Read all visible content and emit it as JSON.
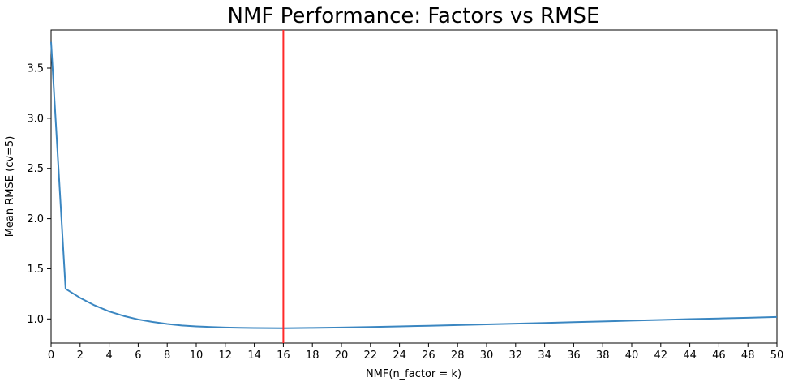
{
  "chart_data": {
    "type": "line",
    "title": "NMF Performance: Factors vs RMSE",
    "xlabel": "NMF(n_factor = k)",
    "ylabel": "Mean RMSE (cv=5)",
    "xlim": [
      0,
      50
    ],
    "ylim": [
      0.76,
      3.88
    ],
    "xticks": [
      0,
      2,
      4,
      6,
      8,
      10,
      12,
      14,
      16,
      18,
      20,
      22,
      24,
      26,
      28,
      30,
      32,
      34,
      36,
      38,
      40,
      42,
      44,
      46,
      48,
      50
    ],
    "yticks": [
      1.0,
      1.5,
      2.0,
      2.5,
      3.0,
      3.5
    ],
    "ytick_labels": [
      "1.0",
      "1.5",
      "2.0",
      "2.5",
      "3.0",
      "3.5"
    ],
    "grid": false,
    "legend": "none",
    "series": [
      {
        "color": "#3a86c1",
        "x": [
          0,
          1,
          2,
          3,
          4,
          5,
          6,
          7,
          8,
          9,
          10,
          11,
          12,
          13,
          14,
          15,
          16,
          18,
          20,
          22,
          24,
          26,
          28,
          30,
          32,
          34,
          36,
          38,
          40,
          42,
          44,
          46,
          48,
          50
        ],
        "y": [
          3.76,
          1.3,
          1.21,
          1.135,
          1.075,
          1.03,
          0.995,
          0.97,
          0.95,
          0.935,
          0.926,
          0.92,
          0.915,
          0.912,
          0.91,
          0.909,
          0.908,
          0.911,
          0.915,
          0.92,
          0.926,
          0.932,
          0.939,
          0.946,
          0.953,
          0.96,
          0.968,
          0.975,
          0.983,
          0.99,
          0.998,
          1.005,
          1.012,
          1.02
        ]
      }
    ],
    "vline": {
      "x": 16,
      "color": "#ff2a2a"
    }
  }
}
